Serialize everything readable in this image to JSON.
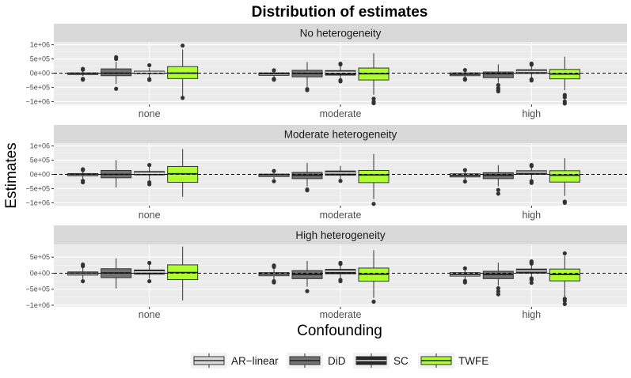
{
  "chart_data": {
    "type": "boxplot",
    "title": "Distribution of estimates",
    "xlabel": "Confounding",
    "ylabel": "Estimates",
    "categories": [
      "none",
      "moderate",
      "high"
    ],
    "reference_line": 0,
    "legend": {
      "position": "bottom",
      "entries": [
        {
          "name": "AR−linear",
          "color": "#d9d9d9"
        },
        {
          "name": "DiD",
          "color": "#737373"
        },
        {
          "name": "SC",
          "color": "#262626"
        },
        {
          "name": "TWFE",
          "color": "#adff2f"
        }
      ]
    },
    "panels": [
      {
        "strip": "No heterogeneity",
        "ylim": [
          -1100000,
          1100000
        ],
        "yticks": [
          1000000,
          500000,
          0,
          -500000,
          -1000000
        ],
        "ytick_labels": [
          "1e+06",
          "5e+05",
          "0e+00",
          "−5e+05",
          "−1e+06"
        ],
        "boxes": [
          [
            {
              "q1": -50000,
              "median": -10000,
              "q3": 10000,
              "low": -100000,
              "high": 70000,
              "outliers": [
                120000,
                150000,
                -200000,
                -230000
              ]
            },
            {
              "q1": -90000,
              "median": 0,
              "q3": 150000,
              "low": -380000,
              "high": 400000,
              "outliers": [
                500000,
                560000,
                -550000
              ]
            },
            {
              "q1": -20000,
              "median": 30000,
              "q3": 70000,
              "low": -150000,
              "high": 190000,
              "outliers": [
                280000,
                -210000,
                -240000
              ]
            },
            {
              "q1": -190000,
              "median": 0,
              "q3": 230000,
              "low": -820000,
              "high": 830000,
              "outliers": [
                970000,
                -870000
              ]
            }
          ],
          [
            {
              "q1": -80000,
              "median": -20000,
              "q3": 10000,
              "low": -150000,
              "high": 70000,
              "outliers": [
                100000,
                -200000,
                -230000
              ]
            },
            {
              "q1": -130000,
              "median": -10000,
              "q3": 100000,
              "low": -480000,
              "high": 390000,
              "outliers": [
                -560000,
                -600000
              ]
            },
            {
              "q1": -70000,
              "median": 30000,
              "q3": 90000,
              "low": -200000,
              "high": 250000,
              "outliers": [
                310000,
                330000,
                -250000,
                -290000
              ]
            },
            {
              "q1": -240000,
              "median": -20000,
              "q3": 180000,
              "low": -760000,
              "high": 700000,
              "outliers": [
                -900000,
                -1010000,
                -1060000
              ]
            }
          ],
          [
            {
              "q1": -90000,
              "median": -40000,
              "q3": 10000,
              "low": -170000,
              "high": 80000,
              "outliers": [
                110000,
                -200000,
                -230000
              ]
            },
            {
              "q1": -160000,
              "median": -20000,
              "q3": 40000,
              "low": -340000,
              "high": 310000,
              "outliers": [
                -420000,
                -520000,
                -580000,
                -640000
              ]
            },
            {
              "q1": -10000,
              "median": 60000,
              "q3": 120000,
              "low": -180000,
              "high": 260000,
              "outliers": [
                300000,
                340000,
                -220000,
                -260000
              ]
            },
            {
              "q1": -200000,
              "median": -30000,
              "q3": 130000,
              "low": -600000,
              "high": 580000,
              "outliers": [
                -770000,
                -850000,
                -1000000,
                -1070000
              ]
            }
          ]
        ]
      },
      {
        "strip": "Moderate heterogeneity",
        "ylim": [
          -1100000,
          1100000
        ],
        "yticks": [
          1000000,
          500000,
          0,
          -500000,
          -1000000
        ],
        "ytick_labels": [
          "1e+06",
          "5e+05",
          "0e+00",
          "−5e+05",
          "−1e+06"
        ],
        "boxes": [
          [
            {
              "q1": -50000,
              "median": 0,
              "q3": 30000,
              "low": -160000,
              "high": 110000,
              "outliers": [
                150000,
                180000,
                -230000,
                -280000
              ]
            },
            {
              "q1": -120000,
              "median": 0,
              "q3": 140000,
              "low": -460000,
              "high": 500000,
              "outliers": []
            },
            {
              "q1": -20000,
              "median": 40000,
              "q3": 100000,
              "low": -200000,
              "high": 280000,
              "outliers": [
                330000,
                -280000,
                -350000
              ]
            },
            {
              "q1": -280000,
              "median": 20000,
              "q3": 280000,
              "low": -790000,
              "high": 890000,
              "outliers": []
            }
          ],
          [
            {
              "q1": -80000,
              "median": -20000,
              "q3": 10000,
              "low": -160000,
              "high": 80000,
              "outliers": [
                120000,
                -240000
              ]
            },
            {
              "q1": -150000,
              "median": -30000,
              "q3": 70000,
              "low": -420000,
              "high": 400000,
              "outliers": [
                -530000,
                -560000
              ]
            },
            {
              "q1": -30000,
              "median": 50000,
              "q3": 120000,
              "low": -180000,
              "high": 300000,
              "outliers": [
                -230000
              ]
            },
            {
              "q1": -290000,
              "median": -20000,
              "q3": 140000,
              "low": -870000,
              "high": 720000,
              "outliers": [
                -1040000
              ]
            }
          ],
          [
            {
              "q1": -90000,
              "median": -40000,
              "q3": 20000,
              "low": -200000,
              "high": 90000,
              "outliers": [
                150000,
                -250000
              ]
            },
            {
              "q1": -150000,
              "median": -30000,
              "q3": 60000,
              "low": -420000,
              "high": 330000,
              "outliers": [
                -550000,
                -680000
              ]
            },
            {
              "q1": 0,
              "median": 80000,
              "q3": 130000,
              "low": -170000,
              "high": 270000,
              "outliers": [
                290000,
                330000,
                -240000,
                -300000
              ]
            },
            {
              "q1": -270000,
              "median": -30000,
              "q3": 130000,
              "low": -760000,
              "high": 570000,
              "outliers": [
                -960000,
                -1000000
              ]
            }
          ]
        ]
      },
      {
        "strip": "High heterogeneity",
        "ylim": [
          -1050000,
          900000
        ],
        "yticks": [
          500000,
          0,
          -500000,
          -1000000
        ],
        "ytick_labels": [
          "5e+05",
          "0e+00",
          "−5e+05",
          "−1e+06"
        ],
        "boxes": [
          [
            {
              "q1": -60000,
              "median": 0,
              "q3": 40000,
              "low": -180000,
              "high": 160000,
              "outliers": [
                220000,
                270000,
                -250000
              ]
            },
            {
              "q1": -140000,
              "median": 10000,
              "q3": 140000,
              "low": -480000,
              "high": 460000,
              "outliers": []
            },
            {
              "q1": -30000,
              "median": 40000,
              "q3": 100000,
              "low": -170000,
              "high": 260000,
              "outliers": [
                320000,
                -250000
              ]
            },
            {
              "q1": -200000,
              "median": 20000,
              "q3": 260000,
              "low": -850000,
              "high": 830000,
              "outliers": []
            }
          ],
          [
            {
              "q1": -80000,
              "median": -30000,
              "q3": 20000,
              "low": -200000,
              "high": 140000,
              "outliers": [
                200000,
                240000,
                -250000,
                -290000
              ]
            },
            {
              "q1": -170000,
              "median": -40000,
              "q3": 80000,
              "low": -420000,
              "high": 380000,
              "outliers": [
                -560000
              ]
            },
            {
              "q1": -20000,
              "median": 60000,
              "q3": 120000,
              "low": -200000,
              "high": 260000,
              "outliers": [
                290000,
                320000,
                -210000,
                -250000
              ]
            },
            {
              "q1": -250000,
              "median": -30000,
              "q3": 160000,
              "low": -770000,
              "high": 720000,
              "outliers": [
                -890000
              ]
            }
          ],
          [
            {
              "q1": -90000,
              "median": -40000,
              "q3": 20000,
              "low": -190000,
              "high": 100000,
              "outliers": [
                150000,
                -240000,
                -290000
              ]
            },
            {
              "q1": -170000,
              "median": -40000,
              "q3": 60000,
              "low": -390000,
              "high": 330000,
              "outliers": [
                -470000,
                -570000,
                -660000
              ]
            },
            {
              "q1": 0,
              "median": 70000,
              "q3": 130000,
              "low": -130000,
              "high": 260000,
              "outliers": [
                300000,
                340000,
                370000,
                -160000,
                -200000,
                -300000
              ]
            },
            {
              "q1": -240000,
              "median": -40000,
              "q3": 130000,
              "low": -740000,
              "high": 540000,
              "outliers": [
                620000,
                -800000,
                -860000,
                -960000
              ]
            }
          ]
        ]
      }
    ]
  }
}
